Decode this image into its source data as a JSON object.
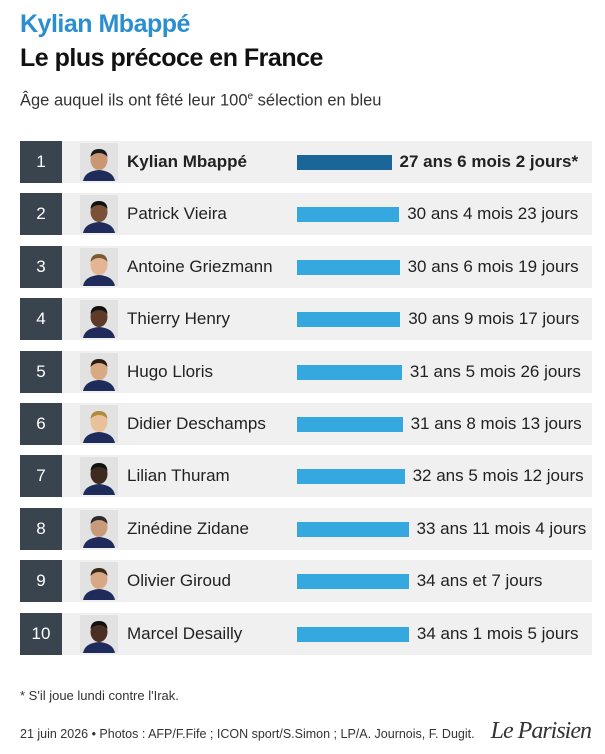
{
  "header": {
    "title_line1": "Kylian Mbappé",
    "title_line2": "Le plus précoce en France",
    "subtitle_before": "Âge auquel ils ont fêté leur 100",
    "subtitle_sup": "e",
    "subtitle_after": " sélection en bleu"
  },
  "colors": {
    "accent": "#2b8fcf",
    "bar": "#35a8df",
    "bar_highlight": "#1b6698",
    "rank_bg": "#39444e",
    "row_bg": "#f0f0f0"
  },
  "chart_data": {
    "type": "bar",
    "orientation": "horizontal",
    "unit": "years",
    "categories": [
      "Kylian Mbappé",
      "Patrick Vieira",
      "Antoine Griezmann",
      "Thierry Henry",
      "Hugo Lloris",
      "Didier Deschamps",
      "Lilian Thuram",
      "Zinédine Zidane",
      "Olivier Giroud",
      "Marcel Desailly"
    ],
    "ranks": [
      "1",
      "2",
      "3",
      "4",
      "5",
      "6",
      "7",
      "8",
      "9",
      "10"
    ],
    "labels": [
      "27 ans 6 mois 2 jours*",
      "30 ans 4 mois 23 jours",
      "30 ans 6 mois 19 jours",
      "30 ans 9 mois 17 jours",
      "31 ans 5 mois 26 jours",
      "31 ans 8 mois 13 jours",
      "32 ans 5 mois 12 jours",
      "33 ans 11 mois 4 jours",
      "34 ans et 7 jours",
      "34 ans 1 mois 5 jours"
    ],
    "values": [
      27.51,
      30.4,
      30.55,
      30.8,
      31.45,
      31.7,
      32.45,
      33.93,
      34.02,
      34.1
    ],
    "highlight_index": 0,
    "photos": [
      "player-photo",
      "player-photo",
      "player-photo",
      "player-photo",
      "player-photo",
      "player-photo",
      "player-photo",
      "player-photo",
      "player-photo",
      "player-photo"
    ]
  },
  "footnote": "* S'il joue lundi contre l'Irak.",
  "credits": "21 juin 2026 • Photos : AFP/F.Fife ; ICON sport/S.Simon ; LP/A. Journois, F. Dugit.",
  "logo": "Le Parisien"
}
